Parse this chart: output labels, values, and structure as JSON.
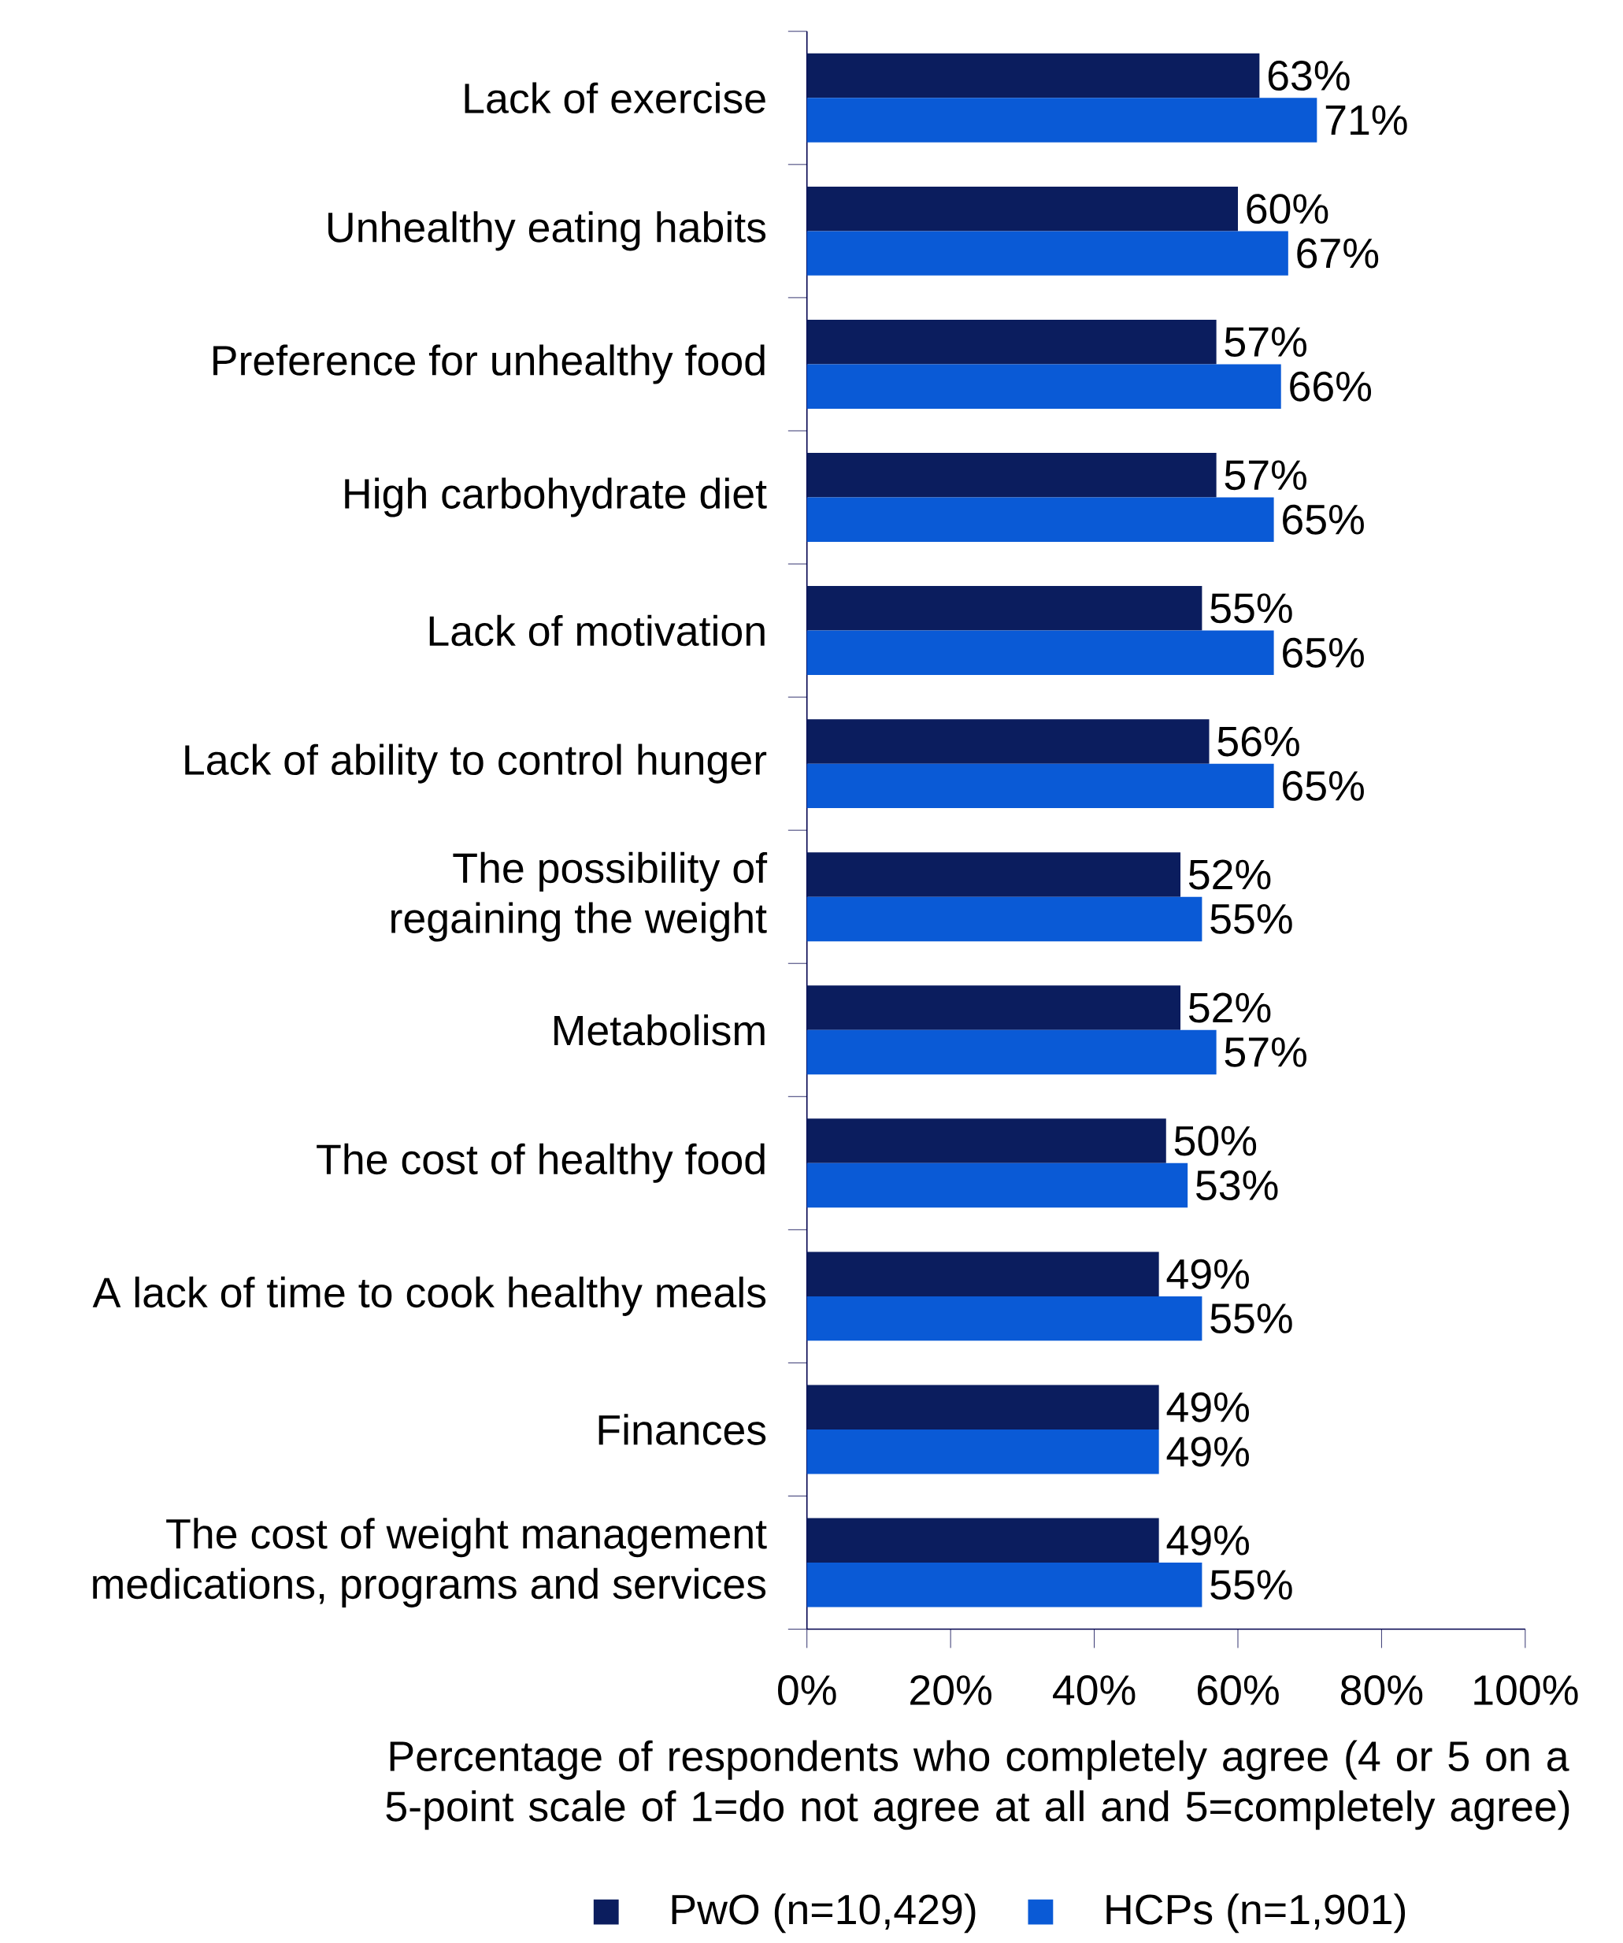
{
  "chart_data": {
    "type": "bar",
    "orientation": "horizontal",
    "xlabel": "Percentage of respondents who completely agree (4 or 5 on a 5-point scale of 1=do not agree at all and 5=completely agree)",
    "categories": [
      "Lack of exercise",
      "Unhealthy eating habits",
      "Preference for unhealthy food",
      "High carbohydrate diet",
      "Lack of motivation",
      "Lack of ability to control hunger",
      "The possibility of regaining the weight",
      "Metabolism",
      "The cost of healthy food",
      "A lack of time to cook healthy meals",
      "Finances",
      "The cost of weight management medications, programs and services"
    ],
    "series": [
      {
        "name": "PwO (n=10,429)",
        "color": "#0b1d5e",
        "values": [
          63,
          60,
          57,
          57,
          55,
          56,
          52,
          52,
          50,
          49,
          49,
          49
        ],
        "value_labels": [
          "63%",
          "60%",
          "57%",
          "57%",
          "55%",
          "56%",
          "52%",
          "52%",
          "50%",
          "49%",
          "49%",
          "49%"
        ]
      },
      {
        "name": "HCPs (n=1,901)",
        "color": "#0a5ad6",
        "values": [
          71,
          67,
          66,
          65,
          65,
          65,
          55,
          57,
          53,
          55,
          49,
          55
        ],
        "value_labels": [
          "71%",
          "67%",
          "66%",
          "65%",
          "65%",
          "65%",
          "55%",
          "57%",
          "53%",
          "55%",
          "49%",
          "55%"
        ]
      }
    ],
    "xlim": [
      0,
      100
    ],
    "xticks": [
      {
        "value": 0,
        "label": "0%"
      },
      {
        "value": 20,
        "label": "20%"
      },
      {
        "value": 40,
        "label": "40%"
      },
      {
        "value": 60,
        "label": "60%"
      },
      {
        "value": 80,
        "label": "80%"
      },
      {
        "value": 100,
        "label": "100%"
      }
    ],
    "legend": "bottom"
  }
}
